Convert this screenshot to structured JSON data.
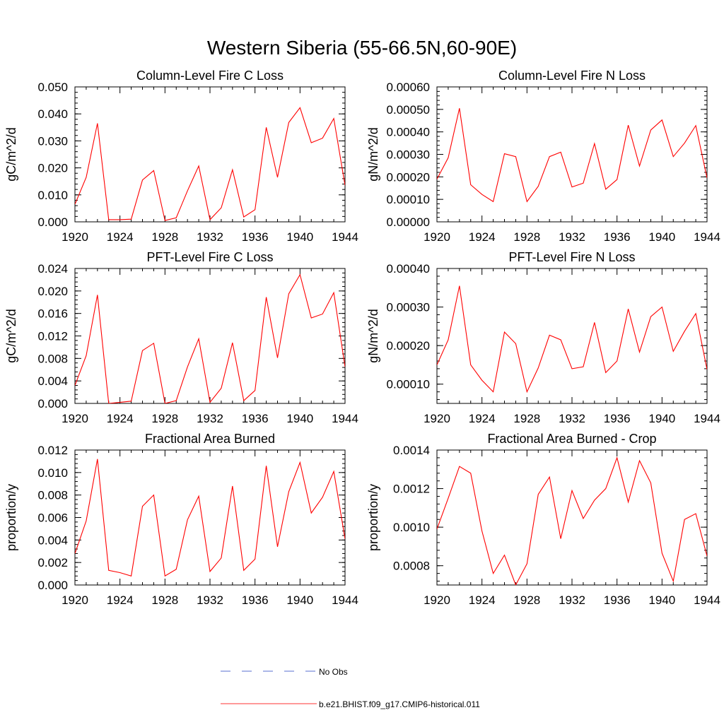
{
  "title": "Western Siberia (55-66.5N,60-90E)",
  "legend": {
    "items": [
      {
        "label": "No Obs",
        "color": "#5a6fd0",
        "dashed": true
      },
      {
        "label": "b.e21.BHIST.f09_g17.CMIP6-historical.011",
        "color": "#ff3333",
        "dashed": false
      }
    ]
  },
  "chart_data": [
    {
      "type": "line",
      "title": "Column-Level Fire C Loss",
      "ylabel": "gC/m^2/d",
      "xlim": [
        1920,
        1944
      ],
      "ylim": [
        0,
        0.05
      ],
      "x_ticks": [
        "1920",
        "1924",
        "1928",
        "1932",
        "1936",
        "1940",
        "1944"
      ],
      "y_ticks": [
        "0.000",
        "0.010",
        "0.020",
        "0.030",
        "0.040",
        "0.050"
      ],
      "series": [
        {
          "color": "#ff0000",
          "x": [
            1920,
            1921,
            1922,
            1923,
            1924,
            1925,
            1926,
            1927,
            1928,
            1929,
            1930,
            1931,
            1932,
            1933,
            1934,
            1935,
            1936,
            1937,
            1938,
            1939,
            1940,
            1941,
            1942,
            1943,
            1944
          ],
          "values": [
            0.0065,
            0.0165,
            0.0365,
            0.0008,
            0.0008,
            0.001,
            0.0155,
            0.019,
            0.0005,
            0.0015,
            0.0115,
            0.0207,
            0.0008,
            0.0052,
            0.0193,
            0.0018,
            0.0045,
            0.035,
            0.0165,
            0.0368,
            0.0423,
            0.0293,
            0.031,
            0.0383,
            0.0135
          ]
        }
      ]
    },
    {
      "type": "line",
      "title": "Column-Level Fire N Loss",
      "ylabel": "gN/m^2/d",
      "xlim": [
        1920,
        1944
      ],
      "ylim": [
        0,
        0.0006
      ],
      "x_ticks": [
        "1920",
        "1924",
        "1928",
        "1932",
        "1936",
        "1940",
        "1944"
      ],
      "y_ticks": [
        "0.00000",
        "0.00010",
        "0.00020",
        "0.00030",
        "0.00040",
        "0.00050",
        "0.00060"
      ],
      "series": [
        {
          "color": "#ff0000",
          "x": [
            1920,
            1921,
            1922,
            1923,
            1924,
            1925,
            1926,
            1927,
            1928,
            1929,
            1930,
            1931,
            1932,
            1933,
            1934,
            1935,
            1936,
            1937,
            1938,
            1939,
            1940,
            1941,
            1942,
            1943,
            1944
          ],
          "values": [
            0.00019,
            0.000285,
            0.000505,
            0.000165,
            0.000122,
            9e-05,
            0.000303,
            0.00029,
            9e-05,
            0.000158,
            0.00029,
            0.00031,
            0.000155,
            0.000172,
            0.000348,
            0.000145,
            0.000188,
            0.00043,
            0.000248,
            0.000408,
            0.000453,
            0.00029,
            0.00035,
            0.000428,
            0.000195
          ]
        }
      ]
    },
    {
      "type": "line",
      "title": "PFT-Level Fire C Loss",
      "ylabel": "gC/m^2/d",
      "xlim": [
        1920,
        1944
      ],
      "ylim": [
        0,
        0.024
      ],
      "x_ticks": [
        "1920",
        "1924",
        "1928",
        "1932",
        "1936",
        "1940",
        "1944"
      ],
      "y_ticks": [
        "0.000",
        "0.004",
        "0.008",
        "0.012",
        "0.016",
        "0.020",
        "0.024"
      ],
      "series": [
        {
          "color": "#ff0000",
          "x": [
            1920,
            1921,
            1922,
            1923,
            1924,
            1925,
            1926,
            1927,
            1928,
            1929,
            1930,
            1931,
            1932,
            1933,
            1934,
            1935,
            1936,
            1937,
            1938,
            1939,
            1940,
            1941,
            1942,
            1943,
            1944
          ],
          "values": [
            0.0032,
            0.0085,
            0.0193,
            0.0,
            0.0002,
            0.0004,
            0.0094,
            0.0107,
            0.0,
            0.0005,
            0.0065,
            0.0115,
            0.0002,
            0.0027,
            0.0108,
            0.0005,
            0.0023,
            0.0189,
            0.0081,
            0.0195,
            0.0229,
            0.0152,
            0.0159,
            0.0197,
            0.0065
          ]
        }
      ]
    },
    {
      "type": "line",
      "title": "PFT-Level Fire N Loss",
      "ylabel": "gN/m^2/d",
      "xlim": [
        1920,
        1944
      ],
      "ylim": [
        5e-05,
        0.0004
      ],
      "x_ticks": [
        "1920",
        "1924",
        "1928",
        "1932",
        "1936",
        "1940",
        "1944"
      ],
      "y_ticks": [
        "0.00010",
        "0.00020",
        "0.00030",
        "0.00040"
      ],
      "y_tick_values": [
        0.0001,
        0.0002,
        0.0003,
        0.0004
      ],
      "series": [
        {
          "color": "#ff0000",
          "x": [
            1920,
            1921,
            1922,
            1923,
            1924,
            1925,
            1926,
            1927,
            1928,
            1929,
            1930,
            1931,
            1932,
            1933,
            1934,
            1935,
            1936,
            1937,
            1938,
            1939,
            1940,
            1941,
            1942,
            1943,
            1944
          ],
          "values": [
            0.00015,
            0.000215,
            0.000355,
            0.00015,
            0.00011,
            8e-05,
            0.000235,
            0.000205,
            8e-05,
            0.000142,
            0.000227,
            0.000215,
            0.00014,
            0.000145,
            0.00026,
            0.00013,
            0.00016,
            0.000295,
            0.000183,
            0.000275,
            0.0003,
            0.000185,
            0.000237,
            0.000283,
            0.000138
          ]
        }
      ]
    },
    {
      "type": "line",
      "title": "Fractional Area Burned",
      "ylabel": "proportion/y",
      "xlim": [
        1920,
        1944
      ],
      "ylim": [
        0,
        0.012
      ],
      "x_ticks": [
        "1920",
        "1924",
        "1928",
        "1932",
        "1936",
        "1940",
        "1944"
      ],
      "y_ticks": [
        "0.000",
        "0.002",
        "0.004",
        "0.006",
        "0.008",
        "0.010",
        "0.012"
      ],
      "series": [
        {
          "color": "#ff0000",
          "x": [
            1920,
            1921,
            1922,
            1923,
            1924,
            1925,
            1926,
            1927,
            1928,
            1929,
            1930,
            1931,
            1932,
            1933,
            1934,
            1935,
            1936,
            1937,
            1938,
            1939,
            1940,
            1941,
            1942,
            1943,
            1944
          ],
          "values": [
            0.0028,
            0.0057,
            0.0112,
            0.0013,
            0.0011,
            0.0008,
            0.007,
            0.008,
            0.0008,
            0.0014,
            0.0058,
            0.0079,
            0.0012,
            0.0024,
            0.0088,
            0.0013,
            0.0023,
            0.0106,
            0.0034,
            0.0083,
            0.0109,
            0.0064,
            0.0078,
            0.0101,
            0.0041
          ]
        }
      ]
    },
    {
      "type": "line",
      "title": "Fractional Area Burned - Crop",
      "ylabel": "proportion/y",
      "xlim": [
        1920,
        1944
      ],
      "ylim": [
        0.0007,
        0.0014
      ],
      "x_ticks": [
        "1920",
        "1924",
        "1928",
        "1932",
        "1936",
        "1940",
        "1944"
      ],
      "y_ticks": [
        "0.0008",
        "0.0010",
        "0.0012",
        "0.0014"
      ],
      "y_tick_values": [
        0.0008,
        0.001,
        0.0012,
        0.0014
      ],
      "series": [
        {
          "color": "#ff0000",
          "x": [
            1920,
            1921,
            1922,
            1923,
            1924,
            1925,
            1926,
            1927,
            1928,
            1929,
            1930,
            1931,
            1932,
            1933,
            1934,
            1935,
            1936,
            1937,
            1938,
            1939,
            1940,
            1941,
            1942,
            1943,
            1944
          ],
          "values": [
            0.00099,
            0.00115,
            0.001315,
            0.00128,
            0.00098,
            0.00076,
            0.000855,
            0.0007,
            0.00081,
            0.00117,
            0.00126,
            0.00094,
            0.00119,
            0.001045,
            0.00114,
            0.0012,
            0.00136,
            0.00113,
            0.001345,
            0.00123,
            0.000865,
            0.00072,
            0.00104,
            0.00107,
            0.00085
          ]
        }
      ]
    }
  ]
}
